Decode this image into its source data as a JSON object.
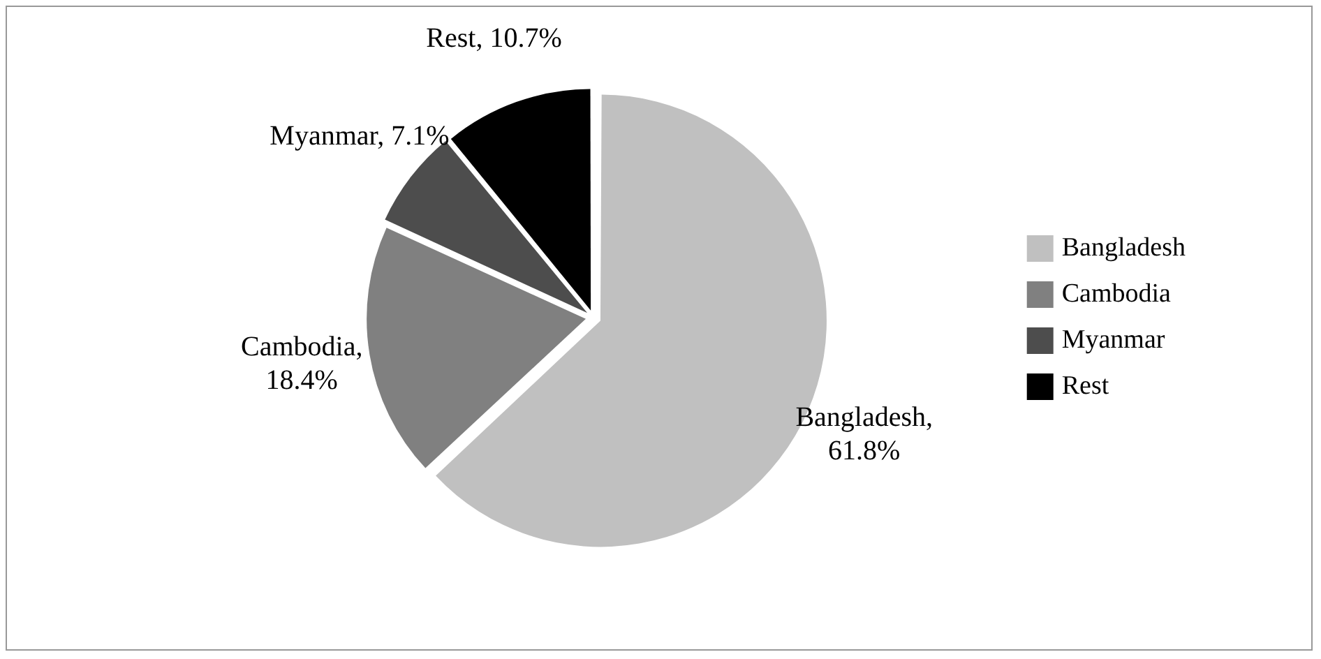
{
  "chart_data": {
    "type": "pie",
    "categories": [
      "Bangladesh",
      "Cambodia",
      "Myanmar",
      "Rest"
    ],
    "values": [
      61.8,
      18.4,
      7.1,
      10.7
    ],
    "colors": [
      "#c0c0c0",
      "#808080",
      "#4d4d4d",
      "#000000"
    ],
    "value_labels": [
      "Bangladesh, 61.8%",
      "Cambodia, 18.4%",
      "Myanmar, 7.1%",
      "Rest, 10.7%"
    ],
    "legend": "right"
  }
}
